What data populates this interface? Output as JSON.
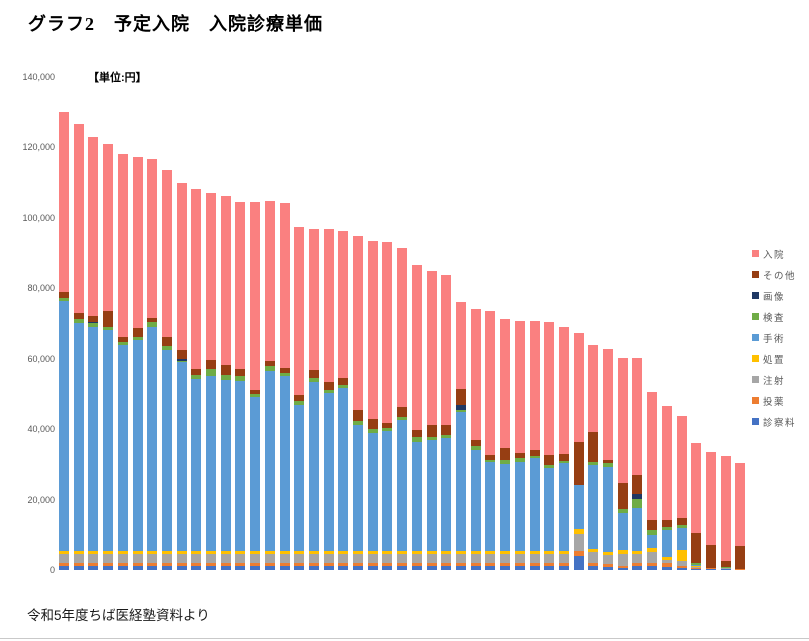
{
  "title": "グラフ2　予定入院　入院診療単価",
  "unit_label": "【単位:円】",
  "source": "令和5年度ちば医経塾資料より",
  "y_axis": {
    "ticks": [
      "0",
      "20,000",
      "40,000",
      "60,000",
      "80,000",
      "100,000",
      "120,000",
      "140,000"
    ],
    "tick_values": [
      0,
      20000,
      40000,
      60000,
      80000,
      100000,
      120000,
      140000
    ]
  },
  "legend": [
    {
      "key": "nyuin",
      "label": "入院",
      "color": "#FA8080"
    },
    {
      "key": "sonota",
      "label": "その他",
      "color": "#963E13"
    },
    {
      "key": "gazo",
      "label": "画像",
      "color": "#1F3864"
    },
    {
      "key": "kensa",
      "label": "検査",
      "color": "#6FAC46"
    },
    {
      "key": "shujutsu",
      "label": "手術",
      "color": "#5B9BD5"
    },
    {
      "key": "shochi",
      "label": "処置",
      "color": "#FFC000"
    },
    {
      "key": "chusha",
      "label": "注射",
      "color": "#A6A6A6"
    },
    {
      "key": "toyaku",
      "label": "投薬",
      "color": "#ED7D31"
    },
    {
      "key": "shinsatsu",
      "label": "診察料",
      "color": "#4472C4"
    }
  ],
  "chart_data": {
    "type": "bar",
    "stacked": true,
    "title": "グラフ2 予定入院 入院診療単価",
    "ylabel": "円",
    "ylim": [
      0,
      140000
    ],
    "grid": false,
    "legend_position": "right",
    "bar_count": 47,
    "series": [
      {
        "key": "shinsatsu",
        "name": "診察料",
        "color": "#4472C4",
        "values": [
          1100,
          1100,
          1100,
          1100,
          1100,
          1100,
          1100,
          1100,
          1100,
          1100,
          1100,
          1100,
          1100,
          1100,
          1100,
          1100,
          1100,
          1100,
          1100,
          1100,
          1100,
          1100,
          1100,
          1100,
          1100,
          1100,
          1100,
          1100,
          1100,
          1100,
          1100,
          1100,
          1100,
          1100,
          1100,
          4000,
          1000,
          800,
          500,
          1100,
          1100,
          950,
          650,
          400,
          300,
          250,
          0
        ]
      },
      {
        "key": "toyaku",
        "name": "投薬",
        "color": "#ED7D31",
        "values": [
          900,
          900,
          900,
          900,
          900,
          900,
          900,
          900,
          900,
          900,
          900,
          900,
          900,
          900,
          900,
          900,
          900,
          900,
          900,
          900,
          900,
          900,
          900,
          900,
          900,
          900,
          900,
          900,
          900,
          900,
          900,
          900,
          900,
          900,
          900,
          1400,
          900,
          900,
          700,
          900,
          900,
          950,
          600,
          300,
          200,
          150,
          400
        ]
      },
      {
        "key": "chusha",
        "name": "注射",
        "color": "#A6A6A6",
        "values": [
          2600,
          2600,
          2600,
          2600,
          2600,
          2600,
          2600,
          2600,
          2600,
          2600,
          2600,
          2600,
          2600,
          2600,
          2600,
          2600,
          2600,
          2600,
          2600,
          2600,
          2600,
          2600,
          2600,
          2600,
          2600,
          2600,
          2600,
          2600,
          2600,
          2600,
          2600,
          2600,
          2600,
          2600,
          2600,
          4700,
          3100,
          2600,
          3400,
          2600,
          3200,
          950,
          1200,
          300,
          150,
          100,
          0
        ]
      },
      {
        "key": "shochi",
        "name": "処置",
        "color": "#FFC000",
        "values": [
          800,
          800,
          800,
          800,
          800,
          800,
          800,
          800,
          800,
          800,
          800,
          800,
          800,
          800,
          800,
          800,
          800,
          800,
          800,
          800,
          800,
          800,
          800,
          800,
          800,
          800,
          800,
          800,
          800,
          800,
          800,
          800,
          800,
          800,
          800,
          1450,
          1100,
          800,
          950,
          800,
          950,
          950,
          3300,
          150,
          50,
          50,
          0
        ]
      },
      {
        "key": "shujutsu",
        "name": "手術",
        "color": "#5B9BD5",
        "values": [
          71000,
          64800,
          63700,
          62800,
          58400,
          59800,
          63600,
          57100,
          53600,
          48800,
          49700,
          48600,
          48400,
          43800,
          51100,
          49600,
          41600,
          48100,
          44800,
          46200,
          35900,
          33500,
          34000,
          37100,
          31000,
          31500,
          32000,
          39600,
          28700,
          25400,
          24800,
          25400,
          26300,
          23500,
          24900,
          12550,
          23600,
          24100,
          10550,
          12100,
          3800,
          7550,
          6250,
          300,
          0,
          0,
          0
        ]
      },
      {
        "key": "kensa",
        "name": "検査",
        "color": "#6FAC46",
        "values": [
          1000,
          1000,
          950,
          950,
          1100,
          950,
          1400,
          1200,
          400,
          1200,
          1900,
          1400,
          1300,
          800,
          1400,
          1000,
          1100,
          1000,
          950,
          950,
          1000,
          1100,
          900,
          1100,
          1400,
          900,
          1000,
          400,
          1000,
          500,
          1000,
          900,
          800,
          900,
          800,
          0,
          1100,
          1100,
          1150,
          2800,
          1400,
          950,
          800,
          450,
          0,
          250,
          0
        ]
      },
      {
        "key": "gazo",
        "name": "画像",
        "color": "#1F3864",
        "values": [
          0,
          0,
          300,
          0,
          0,
          0,
          0,
          0,
          600,
          0,
          0,
          0,
          0,
          0,
          0,
          0,
          0,
          0,
          0,
          0,
          0,
          0,
          0,
          0,
          0,
          0,
          0,
          1400,
          0,
          0,
          0,
          0,
          0,
          0,
          0,
          0,
          0,
          0,
          0,
          1400,
          0,
          0,
          0,
          0,
          0,
          0,
          0
        ]
      },
      {
        "key": "sonota",
        "name": "その他",
        "color": "#963E13",
        "values": [
          1700,
          1700,
          1900,
          4300,
          1400,
          2600,
          1200,
          2400,
          2400,
          1600,
          2700,
          2800,
          1900,
          1000,
          1400,
          1300,
          1500,
          2400,
          2400,
          1900,
          3200,
          2800,
          1400,
          2700,
          1900,
          3300,
          2800,
          4700,
          1800,
          1400,
          3400,
          1500,
          1500,
          2900,
          1900,
          12300,
          8500,
          1000,
          7350,
          5200,
          2850,
          1900,
          1900,
          8500,
          6400,
          1800,
          6400
        ]
      },
      {
        "key": "nyuin",
        "name": "入院",
        "color": "#FA8080",
        "values": [
          50900,
          53800,
          50650,
          47450,
          52000,
          48450,
          45000,
          47400,
          47600,
          51100,
          47500,
          48000,
          47600,
          53600,
          45600,
          47000,
          47700,
          39900,
          43450,
          41850,
          49400,
          50600,
          51500,
          45200,
          46900,
          43900,
          42600,
          24500,
          37200,
          41000,
          36600,
          37600,
          36700,
          37800,
          35900,
          30800,
          24600,
          31400,
          35700,
          33200,
          36450,
          32250,
          29000,
          25760,
          26500,
          29800,
          23500
        ]
      }
    ]
  }
}
